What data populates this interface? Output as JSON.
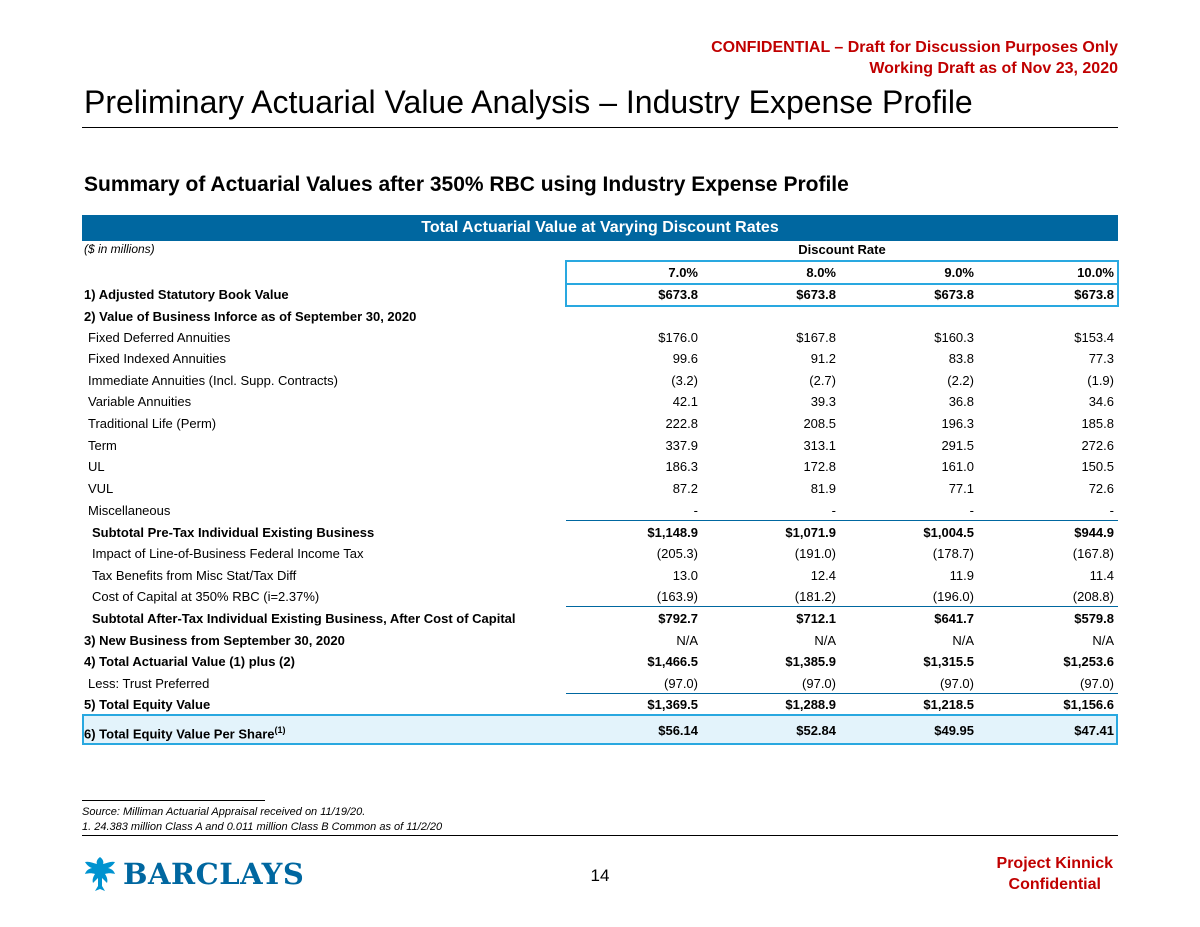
{
  "header": {
    "confidential_line1": "CONFIDENTIAL – Draft for Discussion Purposes Only",
    "confidential_line2": "Working Draft as of Nov 23, 2020",
    "title": "Preliminary Actuarial Value Analysis – Industry Expense Profile",
    "subtitle": "Summary of Actuarial Values after 350% RBC using Industry Expense Profile"
  },
  "table": {
    "banner": "Total Actuarial Value at Varying Discount Rates",
    "units": "($ in millions)",
    "discount_label": "Discount Rate",
    "rates": [
      "7.0%",
      "8.0%",
      "9.0%",
      "10.0%"
    ],
    "rows": [
      {
        "label": "1) Adjusted Statutory Book Value",
        "values": [
          "$673.8",
          "$673.8",
          "$673.8",
          "$673.8"
        ]
      },
      {
        "label": "2) Value of Business Inforce as of September 30, 2020",
        "values": [
          "",
          "",
          "",
          ""
        ]
      },
      {
        "label": "Fixed Deferred Annuities",
        "values": [
          "$176.0",
          "$167.8",
          "$160.3",
          "$153.4"
        ]
      },
      {
        "label": "Fixed Indexed Annuities",
        "values": [
          "99.6",
          "91.2",
          "83.8",
          "77.3"
        ]
      },
      {
        "label": "Immediate Annuities (Incl. Supp. Contracts)",
        "values": [
          "(3.2)",
          "(2.7)",
          "(2.2)",
          "(1.9)"
        ]
      },
      {
        "label": "Variable Annuities",
        "values": [
          "42.1",
          "39.3",
          "36.8",
          "34.6"
        ]
      },
      {
        "label": "Traditional Life (Perm)",
        "values": [
          "222.8",
          "208.5",
          "196.3",
          "185.8"
        ]
      },
      {
        "label": "Term",
        "values": [
          "337.9",
          "313.1",
          "291.5",
          "272.6"
        ]
      },
      {
        "label": "UL",
        "values": [
          "186.3",
          "172.8",
          "161.0",
          "150.5"
        ]
      },
      {
        "label": "VUL",
        "values": [
          "87.2",
          "81.9",
          "77.1",
          "72.6"
        ]
      },
      {
        "label": "Miscellaneous",
        "values": [
          "-",
          "-",
          "-",
          "-"
        ]
      },
      {
        "label": "Subtotal Pre-Tax Individual Existing Business",
        "values": [
          "$1,148.9",
          "$1,071.9",
          "$1,004.5",
          "$944.9"
        ]
      },
      {
        "label": "Impact of Line-of-Business Federal Income Tax",
        "values": [
          "(205.3)",
          "(191.0)",
          "(178.7)",
          "(167.8)"
        ]
      },
      {
        "label": "Tax Benefits from Misc Stat/Tax Diff",
        "values": [
          "13.0",
          "12.4",
          "11.9",
          "11.4"
        ]
      },
      {
        "label": "Cost of Capital at 350% RBC (i=2.37%)",
        "values": [
          "(163.9)",
          "(181.2)",
          "(196.0)",
          "(208.8)"
        ]
      },
      {
        "label": "Subtotal After-Tax Individual Existing Business, After Cost of Capital",
        "values": [
          "$792.7",
          "$712.1",
          "$641.7",
          "$579.8"
        ]
      },
      {
        "label": "3) New Business from September 30, 2020",
        "values": [
          "N/A",
          "N/A",
          "N/A",
          "N/A"
        ]
      },
      {
        "label": "4) Total Actuarial Value (1) plus (2)",
        "values": [
          "$1,466.5",
          "$1,385.9",
          "$1,315.5",
          "$1,253.6"
        ]
      },
      {
        "label": "Less: Trust Preferred",
        "values": [
          "(97.0)",
          "(97.0)",
          "(97.0)",
          "(97.0)"
        ]
      },
      {
        "label": "5) Total Equity Value",
        "values": [
          "$1,369.5",
          "$1,288.9",
          "$1,218.5",
          "$1,156.6"
        ]
      }
    ],
    "per_share": {
      "label": "6) Total Equity Value Per Share",
      "footnote_ref": "(1)",
      "values": [
        "$56.14",
        "$52.84",
        "$49.95",
        "$47.41"
      ]
    }
  },
  "footer": {
    "source": "Source: Milliman Actuarial Appraisal received on 11/19/20.",
    "note": "1. 24.383 million Class A and 0.011 million Class B Common as of 11/2/20",
    "logo_text": "BARCLAYS",
    "page_number": "14",
    "project_line1": "Project Kinnick",
    "project_line2": "Confidential"
  }
}
